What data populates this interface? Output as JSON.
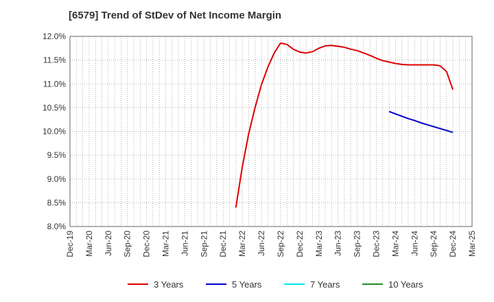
{
  "title": "[6579]  Trend of StDev of Net Income Margin",
  "chart_data": {
    "type": "line",
    "title": "[6579]  Trend of StDev of Net Income Margin",
    "xlabel": "",
    "ylabel": "",
    "ylim": [
      8.0,
      12.0
    ],
    "yticks": [
      "8.0%",
      "8.5%",
      "9.0%",
      "9.5%",
      "10.0%",
      "10.5%",
      "11.0%",
      "11.5%",
      "12.0%"
    ],
    "xticks": [
      "Dec-19",
      "Mar-20",
      "Jun-20",
      "Sep-20",
      "Dec-20",
      "Mar-21",
      "Jun-21",
      "Sep-21",
      "Dec-21",
      "Mar-22",
      "Jun-22",
      "Sep-22",
      "Dec-22",
      "Mar-23",
      "Jun-23",
      "Sep-23",
      "Dec-23",
      "Mar-24",
      "Jun-24",
      "Sep-24",
      "Dec-24",
      "Mar-25"
    ],
    "x_range": [
      "2019-12",
      "2025-03"
    ],
    "grid": true,
    "legend_position": "bottom",
    "series": [
      {
        "name": "3 Years",
        "color": "#dd0000",
        "points": [
          [
            "2022-02",
            8.4
          ],
          [
            "2022-03",
            9.25
          ],
          [
            "2022-04",
            9.95
          ],
          [
            "2022-05",
            10.5
          ],
          [
            "2022-06",
            10.98
          ],
          [
            "2022-07",
            11.35
          ],
          [
            "2022-08",
            11.65
          ],
          [
            "2022-09",
            11.86
          ],
          [
            "2022-10",
            11.83
          ],
          [
            "2022-11",
            11.73
          ],
          [
            "2022-12",
            11.67
          ],
          [
            "2023-01",
            11.65
          ],
          [
            "2023-02",
            11.68
          ],
          [
            "2023-03",
            11.75
          ],
          [
            "2023-04",
            11.8
          ],
          [
            "2023-05",
            11.81
          ],
          [
            "2023-06",
            11.79
          ],
          [
            "2023-07",
            11.77
          ],
          [
            "2023-08",
            11.73
          ],
          [
            "2023-09",
            11.7
          ],
          [
            "2023-10",
            11.65
          ],
          [
            "2023-11",
            11.6
          ],
          [
            "2023-12",
            11.54
          ],
          [
            "2024-01",
            11.49
          ],
          [
            "2024-02",
            11.46
          ],
          [
            "2024-03",
            11.43
          ],
          [
            "2024-04",
            11.41
          ],
          [
            "2024-05",
            11.4
          ],
          [
            "2024-06",
            11.4
          ],
          [
            "2024-07",
            11.4
          ],
          [
            "2024-08",
            11.4
          ],
          [
            "2024-09",
            11.4
          ],
          [
            "2024-10",
            11.38
          ],
          [
            "2024-11",
            11.26
          ],
          [
            "2024-12",
            10.88
          ]
        ]
      },
      {
        "name": "5 Years",
        "color": "#0000cc",
        "points": [
          [
            "2024-02",
            10.42
          ],
          [
            "2024-03",
            10.37
          ],
          [
            "2024-04",
            10.32
          ],
          [
            "2024-05",
            10.27
          ],
          [
            "2024-06",
            10.23
          ],
          [
            "2024-07",
            10.18
          ],
          [
            "2024-08",
            10.14
          ],
          [
            "2024-09",
            10.1
          ],
          [
            "2024-10",
            10.06
          ],
          [
            "2024-11",
            10.02
          ],
          [
            "2024-12",
            9.98
          ]
        ]
      },
      {
        "name": "7 Years",
        "color": "#00e5ee",
        "points": []
      },
      {
        "name": "10 Years",
        "color": "#228b22",
        "points": []
      }
    ]
  }
}
